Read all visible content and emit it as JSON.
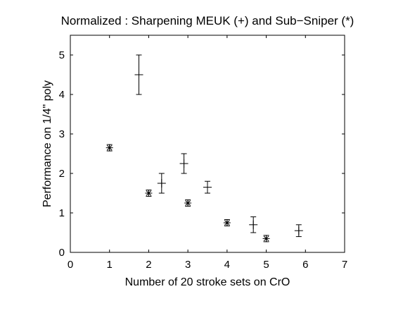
{
  "chart_data": {
    "type": "scatter",
    "title": "Normalized : Sharpening MEUK (+) and Sub−Sniper (*)",
    "xlabel": "Number of 20 stroke sets on CrO",
    "ylabel": "Performance on 1/4\" poly",
    "xlim": [
      0,
      7
    ],
    "ylim": [
      0,
      5.5
    ],
    "xticks": [
      0,
      1,
      2,
      3,
      4,
      5,
      6,
      7
    ],
    "yticks": [
      0,
      1,
      2,
      3,
      4,
      5
    ],
    "grid": false,
    "series": [
      {
        "marker": "+",
        "color": "#000000",
        "x": [
          1.75,
          2.33,
          2.9,
          3.5,
          4.67,
          5.83
        ],
        "y": [
          4.5,
          1.75,
          2.25,
          1.65,
          0.7,
          0.55
        ],
        "yerr": [
          0.5,
          0.25,
          0.25,
          0.15,
          0.2,
          0.15
        ]
      },
      {
        "marker": "*",
        "color": "#000000",
        "x": [
          1,
          2,
          3,
          4,
          5
        ],
        "y": [
          2.65,
          1.5,
          1.25,
          0.75,
          0.35
        ],
        "yerr": [
          0.08,
          0.08,
          0.08,
          0.08,
          0.08
        ]
      }
    ]
  }
}
